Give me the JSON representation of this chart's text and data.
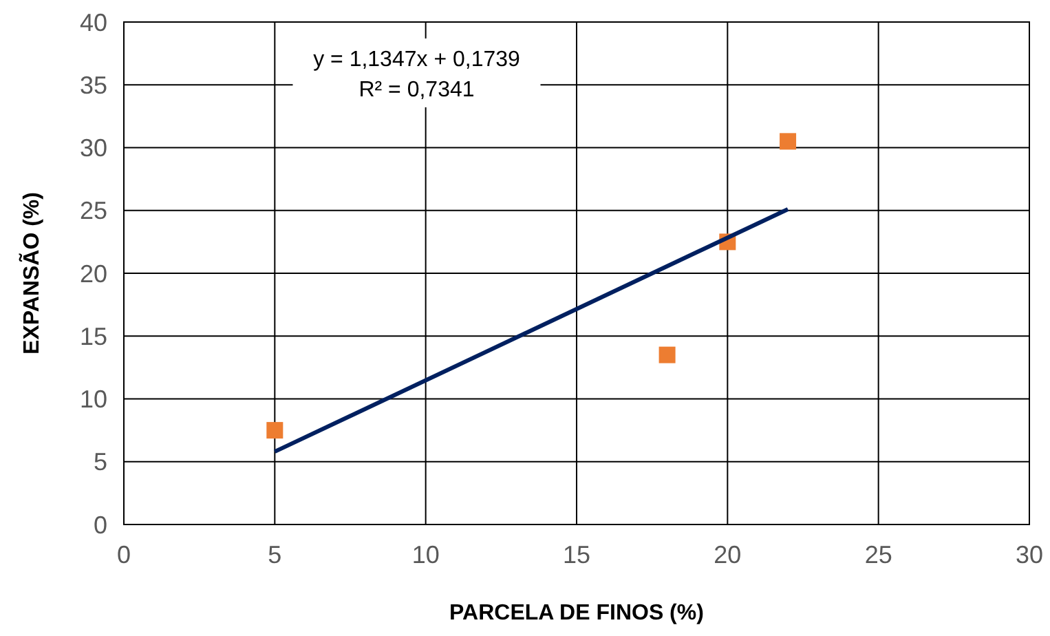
{
  "chart_data": {
    "type": "scatter",
    "xlabel": "PARCELA DE FINOS (%)",
    "ylabel": "EXPANSÃO (%)",
    "xlim": [
      0,
      30
    ],
    "xticks": [
      0,
      5,
      10,
      15,
      20,
      25,
      30
    ],
    "ylim": [
      0,
      40
    ],
    "yticks": [
      0,
      5,
      10,
      15,
      20,
      25,
      30,
      35,
      40
    ],
    "grid": true,
    "x": [
      5,
      18,
      20,
      22
    ],
    "series": [
      {
        "marker": "square",
        "color": "#ed7d31",
        "values": [
          7.5,
          13.5,
          22.5,
          30.5
        ]
      },
      {
        "type": "line",
        "color": "#002060",
        "x": [
          5,
          22
        ],
        "values": [
          5.8,
          25.1
        ]
      }
    ],
    "annotations": [
      "y = 1,1347x + 0,1739",
      "R² = 0,7341"
    ]
  }
}
